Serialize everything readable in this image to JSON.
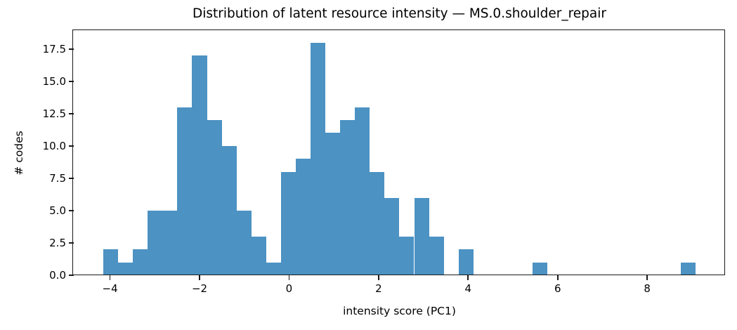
{
  "chart_data": {
    "type": "bar",
    "subtype": "histogram",
    "title": "Distribution of latent resource intensity — MS.0.shoulder_repair",
    "xlabel": "intensity score (PC1)",
    "ylabel": "# codes",
    "bin_start": -4.15,
    "bin_width": 0.3307,
    "counts": [
      2,
      1,
      2,
      5,
      5,
      13,
      17,
      12,
      10,
      5,
      3,
      1,
      8,
      9,
      18,
      11,
      12,
      13,
      8,
      6,
      3,
      6,
      3,
      0,
      2,
      0,
      0,
      0,
      0,
      1,
      0,
      0,
      0,
      0,
      0,
      0,
      0,
      0,
      0,
      1
    ],
    "xlim": [
      -4.81,
      9.74
    ],
    "ylim": [
      0,
      18.9
    ],
    "x_ticks": [
      -4,
      -2,
      0,
      2,
      4,
      6,
      8
    ],
    "x_tick_labels": [
      "−4",
      "−2",
      "0",
      "2",
      "4",
      "6",
      "8"
    ],
    "y_ticks": [
      0,
      2.5,
      5,
      7.5,
      10,
      12.5,
      15,
      17.5
    ],
    "y_tick_labels": [
      "0.0",
      "2.5",
      "5.0",
      "7.5",
      "10.0",
      "12.5",
      "15.0",
      "17.5"
    ],
    "grid": false,
    "legend": null,
    "bar_color": "#4c92c3",
    "axis_color": "#1a1a1a",
    "text_color": "#000000"
  }
}
